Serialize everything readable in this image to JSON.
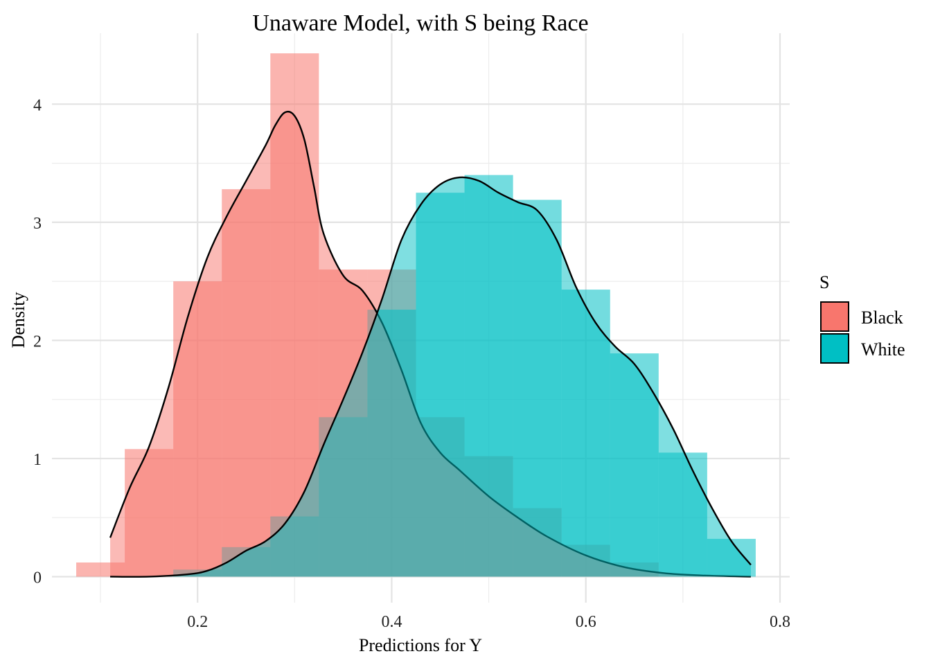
{
  "chart_data": {
    "type": "area",
    "title": "Unaware Model, with S being Race",
    "xlabel": "Predictions for Y",
    "ylabel": "Density",
    "xlim": [
      0.05,
      0.81
    ],
    "ylim": [
      -0.22,
      4.6
    ],
    "x_ticks": [
      0.2,
      0.4,
      0.6,
      0.8
    ],
    "x_tick_labels": [
      "0.2",
      "0.4",
      "0.6",
      "0.8"
    ],
    "y_ticks": [
      0,
      1,
      2,
      3,
      4
    ],
    "y_tick_labels": [
      "0",
      "1",
      "2",
      "3",
      "4"
    ],
    "x_minor_ticks": [
      0.1,
      0.3,
      0.5,
      0.7
    ],
    "y_minor_ticks": [
      0.5,
      1.5,
      2.5,
      3.5
    ],
    "grid": true,
    "legend": {
      "title": "S",
      "position": "right"
    },
    "histogram_bins": [
      0.05,
      0.1,
      0.15,
      0.2,
      0.25,
      0.3,
      0.35,
      0.4,
      0.45,
      0.5,
      0.55,
      0.6,
      0.65,
      0.7,
      0.75,
      0.8
    ],
    "series": [
      {
        "name": "Black",
        "color": "#F8766D",
        "histogram": {
          "x_start": [
            0.075,
            0.125,
            0.175,
            0.225,
            0.275,
            0.325,
            0.375,
            0.425,
            0.475,
            0.525,
            0.575,
            0.625
          ],
          "x_end": [
            0.125,
            0.175,
            0.225,
            0.275,
            0.325,
            0.375,
            0.425,
            0.475,
            0.525,
            0.575,
            0.625,
            0.675
          ],
          "density": [
            0.12,
            1.08,
            2.5,
            3.28,
            4.43,
            2.6,
            2.6,
            1.35,
            1.02,
            0.58,
            0.27,
            0.12
          ]
        },
        "density_curve": {
          "x": [
            0.11,
            0.13,
            0.15,
            0.17,
            0.19,
            0.21,
            0.23,
            0.25,
            0.27,
            0.28,
            0.29,
            0.3,
            0.31,
            0.32,
            0.33,
            0.35,
            0.37,
            0.39,
            0.41,
            0.43,
            0.45,
            0.47,
            0.5,
            0.53,
            0.56,
            0.6,
            0.64,
            0.68,
            0.72,
            0.77
          ],
          "y": [
            0.33,
            0.75,
            1.1,
            1.6,
            2.2,
            2.7,
            3.05,
            3.35,
            3.65,
            3.82,
            3.93,
            3.9,
            3.7,
            3.3,
            2.9,
            2.55,
            2.42,
            2.15,
            1.75,
            1.3,
            1.05,
            0.9,
            0.68,
            0.5,
            0.34,
            0.18,
            0.08,
            0.03,
            0.01,
            0.0
          ]
        }
      },
      {
        "name": "White",
        "color": "#00BFC4",
        "histogram": {
          "x_start": [
            0.175,
            0.225,
            0.275,
            0.325,
            0.375,
            0.425,
            0.475,
            0.525,
            0.575,
            0.625,
            0.675,
            0.725
          ],
          "x_end": [
            0.225,
            0.275,
            0.325,
            0.375,
            0.425,
            0.475,
            0.525,
            0.575,
            0.625,
            0.675,
            0.725,
            0.775
          ],
          "density": [
            0.06,
            0.25,
            0.51,
            1.35,
            2.26,
            3.25,
            3.4,
            3.19,
            2.43,
            1.89,
            1.05,
            0.32
          ]
        },
        "density_curve": {
          "x": [
            0.11,
            0.15,
            0.19,
            0.21,
            0.23,
            0.25,
            0.27,
            0.29,
            0.31,
            0.33,
            0.35,
            0.37,
            0.39,
            0.41,
            0.43,
            0.45,
            0.47,
            0.49,
            0.51,
            0.53,
            0.55,
            0.57,
            0.59,
            0.61,
            0.63,
            0.65,
            0.67,
            0.69,
            0.71,
            0.73,
            0.75,
            0.77
          ],
          "y": [
            0.0,
            0.0,
            0.02,
            0.05,
            0.12,
            0.22,
            0.3,
            0.45,
            0.72,
            1.12,
            1.5,
            1.9,
            2.35,
            2.85,
            3.15,
            3.32,
            3.38,
            3.35,
            3.25,
            3.17,
            3.1,
            2.85,
            2.45,
            2.15,
            1.95,
            1.8,
            1.55,
            1.25,
            0.9,
            0.58,
            0.3,
            0.1
          ]
        }
      }
    ]
  }
}
